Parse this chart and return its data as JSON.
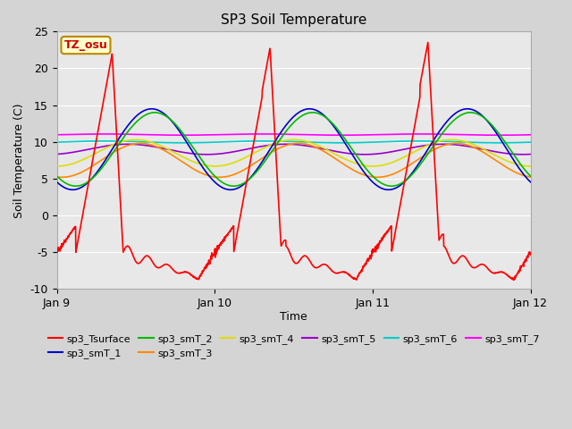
{
  "title": "SP3 Soil Temperature",
  "xlabel": "Time",
  "ylabel": "Soil Temperature (C)",
  "ylim": [
    -10,
    25
  ],
  "xlim": [
    0,
    3
  ],
  "xtick_labels": [
    "Jan 9",
    "Jan 10",
    "Jan 11",
    "Jan 12"
  ],
  "xtick_pos": [
    0,
    1,
    2,
    3
  ],
  "annotation_text": "TZ_osu",
  "annotation_color": "#cc0000",
  "annotation_bg": "#ffffcc",
  "annotation_border": "#bb8800",
  "fig_bg_color": "#d4d4d4",
  "plot_bg_color": "#e8e8e8",
  "grid_color": "#ffffff",
  "series_colors": {
    "sp3_Tsurface": "#ff0000",
    "sp3_smT_1": "#0000cc",
    "sp3_smT_2": "#00bb00",
    "sp3_smT_3": "#ff8800",
    "sp3_smT_4": "#dddd00",
    "sp3_smT_5": "#9900cc",
    "sp3_smT_6": "#00cccc",
    "sp3_smT_7": "#ff00ff"
  },
  "lw": 1.2
}
